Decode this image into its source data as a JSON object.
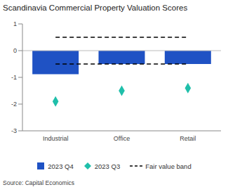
{
  "chart_data": {
    "type": "bar",
    "title": "Scandinavia Commercial Property Valuation Scores",
    "categories": [
      "Industrial",
      "Office",
      "Retail"
    ],
    "series": [
      {
        "name": "2023 Q4",
        "type": "bar",
        "color": "#1f52c4",
        "values": [
          -0.88,
          -0.5,
          -0.5
        ]
      },
      {
        "name": "2023 Q3",
        "type": "scatter",
        "marker": "diamond",
        "color": "#1fbfaa",
        "values": [
          -1.9,
          -1.5,
          -1.4
        ]
      },
      {
        "name": "Fair value band",
        "type": "line",
        "line_style": "dashed",
        "color": "#000000",
        "values": [
          [
            -0.5,
            0.5
          ],
          [
            -0.5,
            0.5
          ],
          [
            -0.5,
            0.5
          ]
        ]
      }
    ],
    "ylim": [
      -3,
      1
    ],
    "yticks": [
      -3,
      -2,
      -1,
      0,
      1
    ],
    "grid": false,
    "annotations": [
      "Source: Capital Economics"
    ]
  }
}
